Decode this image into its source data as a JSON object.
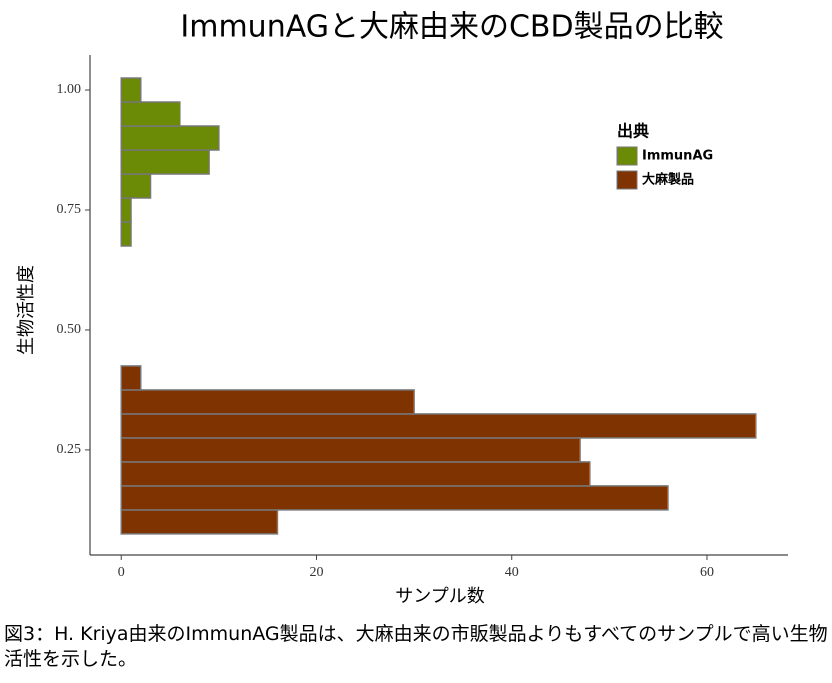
{
  "chart_data": {
    "type": "histogram",
    "orientation": "horizontal",
    "title": "ImmunAGと大麻由来のCBD製品の比較",
    "xlabel": "サンプル数",
    "ylabel": "生物活性度",
    "legend_title": "出典",
    "legend": "right",
    "series": [
      {
        "name": "ImmunAG",
        "color": "#6b8a06",
        "bins": [
          0.675,
          0.725,
          0.775,
          0.825,
          0.875,
          0.925,
          0.975,
          1.025
        ],
        "values": [
          1,
          1,
          3,
          9,
          10,
          6,
          2
        ]
      },
      {
        "name": "大麻製品",
        "color": "#7f3300",
        "bins": [
          0.075,
          0.125,
          0.175,
          0.225,
          0.275,
          0.325,
          0.375,
          0.425
        ],
        "values": [
          16,
          56,
          48,
          47,
          65,
          30,
          2
        ]
      }
    ],
    "xlim": [
      -3.2,
      68.3
    ],
    "xticks": [
      0,
      20,
      40,
      60
    ],
    "ylim": [
      0.031,
      1.073
    ],
    "yticks": [
      0.25,
      {
        "value": 0.5,
        "label": "0.50"
      },
      0.75,
      {
        "value": 1.0,
        "label": "1.00"
      }
    ],
    "caption": "図3：H. Kriya由来のImmunAG製品は、大麻由来の市販製品よりもすべてのサンプルで高い生物活性を示した。"
  }
}
